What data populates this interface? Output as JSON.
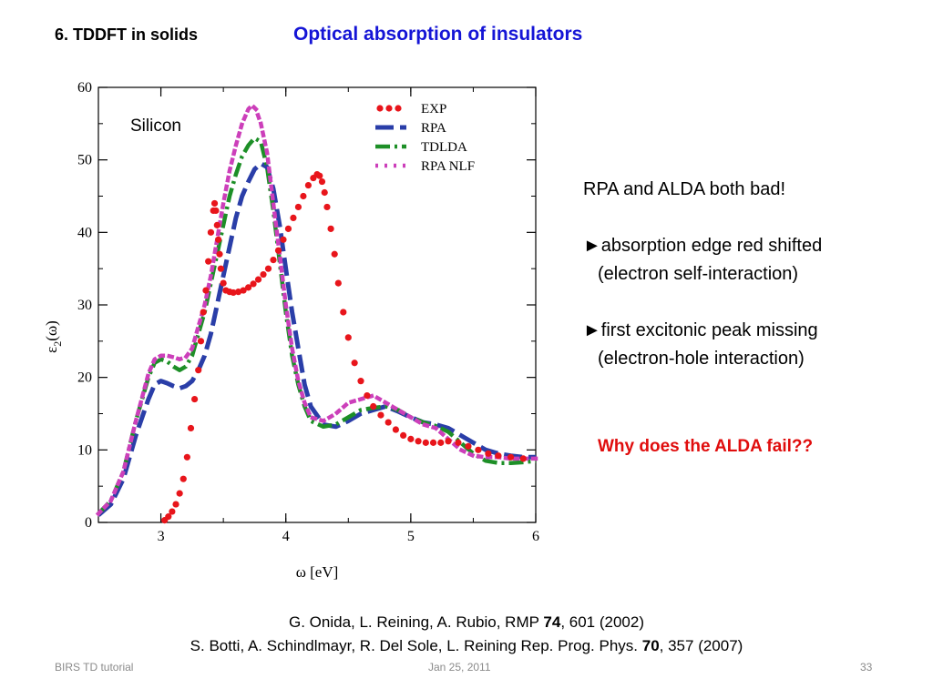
{
  "header": {
    "section": "6. TDDFT in solids",
    "title": "Optical absorption of insulators"
  },
  "notes": {
    "line1": "RPA and ALDA both bad!",
    "bullet1_marker": "►",
    "bullet1_line1": "absorption edge red shifted",
    "bullet1_line2": "(electron self-interaction)",
    "bullet2_marker": "►",
    "bullet2_line1": "first excitonic peak missing",
    "bullet2_line2": "(electron-hole interaction)",
    "question": "Why does the ALDA fail??"
  },
  "references": {
    "ref1_pre": "G. Onida, L. Reining, A. Rubio, RMP ",
    "ref1_vol": "74",
    "ref1_post": ", 601 (2002)",
    "ref2_pre": "S. Botti, A. Schindlmayr, R. Del Sole, L. Reining Rep. Prog. Phys. ",
    "ref2_vol": "70",
    "ref2_post": ", 357 (2007)"
  },
  "footer": {
    "left": "BIRS TD tutorial",
    "center": "Jan 25, 2011",
    "right": "33"
  },
  "chart_data": {
    "type": "line",
    "annotation": "Silicon",
    "xlabel": "ω [eV]",
    "ylabel_main": "ε",
    "ylabel_sub": "2",
    "ylabel_suffix": "(ω)",
    "xlim": [
      2.5,
      6
    ],
    "ylim": [
      0,
      60
    ],
    "xticks": [
      3,
      4,
      5,
      6
    ],
    "yticks": [
      0,
      10,
      20,
      30,
      40,
      50,
      60
    ],
    "legend_position": "top-right",
    "series": [
      {
        "name": "EXP",
        "style": "dots",
        "color": "#e8151b",
        "x": [
          3.03,
          3.06,
          3.09,
          3.12,
          3.15,
          3.18,
          3.21,
          3.24,
          3.27,
          3.3,
          3.32,
          3.34,
          3.36,
          3.38,
          3.4,
          3.42,
          3.43,
          3.44,
          3.45,
          3.46,
          3.47,
          3.48,
          3.5,
          3.52,
          3.55,
          3.58,
          3.62,
          3.66,
          3.7,
          3.74,
          3.78,
          3.82,
          3.86,
          3.9,
          3.94,
          3.98,
          4.02,
          4.06,
          4.1,
          4.14,
          4.18,
          4.22,
          4.25,
          4.27,
          4.29,
          4.31,
          4.33,
          4.36,
          4.39,
          4.42,
          4.46,
          4.5,
          4.55,
          4.6,
          4.65,
          4.7,
          4.76,
          4.82,
          4.88,
          4.94,
          5.0,
          5.06,
          5.12,
          5.18,
          5.24,
          5.3,
          5.38,
          5.46,
          5.54,
          5.62,
          5.7,
          5.8,
          5.9
        ],
        "y": [
          0.3,
          0.8,
          1.5,
          2.5,
          4.0,
          6.0,
          9.0,
          13,
          17,
          21,
          25,
          29,
          32,
          36,
          40,
          43,
          44,
          43,
          41,
          39,
          37,
          35,
          33,
          32,
          31.8,
          31.7,
          31.8,
          32,
          32.4,
          32.9,
          33.5,
          34.2,
          35,
          36.2,
          37.5,
          39,
          40.5,
          42,
          43.5,
          45,
          46.5,
          47.5,
          48,
          47.8,
          47,
          45.5,
          43.5,
          40.5,
          37,
          33,
          29,
          25.5,
          22,
          19.5,
          17.5,
          16,
          14.8,
          13.8,
          12.8,
          12,
          11.5,
          11.2,
          11,
          11,
          11,
          11.2,
          11,
          10.5,
          10,
          9.5,
          9.2,
          9,
          8.8
        ]
      },
      {
        "name": "RPA",
        "style": "dashed",
        "color": "#2a3ea8",
        "x": [
          2.5,
          2.6,
          2.7,
          2.8,
          2.9,
          2.95,
          3.0,
          3.05,
          3.1,
          3.15,
          3.2,
          3.25,
          3.3,
          3.35,
          3.4,
          3.45,
          3.5,
          3.55,
          3.6,
          3.65,
          3.7,
          3.75,
          3.8,
          3.85,
          3.9,
          3.95,
          4.0,
          4.05,
          4.1,
          4.15,
          4.2,
          4.3,
          4.4,
          4.5,
          4.6,
          4.7,
          4.8,
          4.9,
          5.0,
          5.1,
          5.2,
          5.3,
          5.4,
          5.5,
          5.6,
          5.7,
          5.8,
          5.9,
          6.0
        ],
        "y": [
          1,
          2.5,
          6,
          12,
          17,
          19,
          19.5,
          19.2,
          18.8,
          18.5,
          18.8,
          19.5,
          21,
          23,
          26,
          30,
          34,
          38,
          42,
          45,
          47,
          48.7,
          49.5,
          49,
          46,
          41,
          35,
          29,
          24,
          19,
          16,
          13.5,
          13.2,
          14,
          15,
          15.5,
          16,
          15.3,
          14.5,
          13.8,
          13.5,
          13,
          12,
          11,
          10,
          9.5,
          9.2,
          9,
          9
        ]
      },
      {
        "name": "TDLDA",
        "style": "dashdot",
        "color": "#1d8f27",
        "x": [
          2.5,
          2.6,
          2.7,
          2.8,
          2.9,
          2.95,
          3.0,
          3.05,
          3.1,
          3.15,
          3.2,
          3.25,
          3.3,
          3.35,
          3.4,
          3.45,
          3.5,
          3.55,
          3.6,
          3.65,
          3.7,
          3.75,
          3.8,
          3.85,
          3.9,
          3.95,
          4.0,
          4.05,
          4.1,
          4.15,
          4.2,
          4.3,
          4.4,
          4.5,
          4.6,
          4.7,
          4.8,
          4.9,
          5.0,
          5.1,
          5.2,
          5.3,
          5.4,
          5.5,
          5.6,
          5.7,
          5.8,
          5.9,
          6.0
        ],
        "y": [
          1.2,
          3,
          7,
          14,
          20,
          22,
          22.5,
          22.2,
          21.5,
          21,
          21.5,
          23,
          26,
          29,
          33,
          37,
          41,
          45,
          48,
          50.5,
          52,
          53,
          52.5,
          49,
          43,
          36,
          29,
          23,
          19,
          16,
          14,
          13.2,
          13.5,
          14.5,
          15.5,
          15.8,
          16,
          15.5,
          14.5,
          13.8,
          13.3,
          12.5,
          11,
          9.5,
          8.5,
          8.2,
          8.2,
          8.3,
          8.5
        ]
      },
      {
        "name": "RPA NLF",
        "style": "dotted",
        "color": "#cc3fba",
        "x": [
          2.5,
          2.6,
          2.7,
          2.8,
          2.9,
          2.95,
          3.0,
          3.05,
          3.1,
          3.15,
          3.2,
          3.25,
          3.3,
          3.35,
          3.4,
          3.45,
          3.5,
          3.55,
          3.6,
          3.65,
          3.7,
          3.73,
          3.76,
          3.8,
          3.85,
          3.9,
          3.95,
          4.0,
          4.05,
          4.1,
          4.15,
          4.2,
          4.3,
          4.4,
          4.5,
          4.6,
          4.7,
          4.8,
          4.9,
          5.0,
          5.1,
          5.2,
          5.3,
          5.4,
          5.5,
          5.6,
          5.7,
          5.8,
          5.9,
          6.0
        ],
        "y": [
          1.2,
          3,
          7,
          14,
          20.5,
          22.5,
          23,
          23,
          22.8,
          22.5,
          22.8,
          24,
          27,
          30,
          34,
          39,
          44,
          48.5,
          52,
          55,
          57,
          57.5,
          57,
          55,
          51,
          44,
          37,
          30,
          24,
          19.5,
          16.5,
          14.5,
          14,
          15,
          16.5,
          17,
          17.5,
          16.5,
          15.5,
          14.5,
          13.5,
          13,
          11.5,
          10,
          9.2,
          9,
          9,
          8.8,
          8.8,
          8.8
        ]
      }
    ]
  }
}
